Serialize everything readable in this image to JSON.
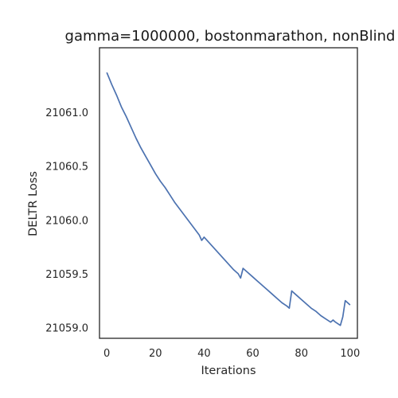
{
  "chart_data": {
    "type": "line",
    "title": "gamma=1000000, bostonmarathon, nonBlind",
    "xlabel": "Iterations",
    "ylabel": "DELTR Loss",
    "xlim": [
      -3,
      103
    ],
    "ylim": [
      21058.9,
      21061.6
    ],
    "xticks": [
      0,
      20,
      40,
      60,
      80,
      100
    ],
    "xtick_labels": [
      "0",
      "20",
      "40",
      "60",
      "80",
      "100"
    ],
    "yticks": [
      21059.0,
      21059.5,
      21060.0,
      21060.5,
      21061.0
    ],
    "ytick_labels": [
      "21059.0",
      "21059.5",
      "21060.0",
      "21060.5",
      "21061.0"
    ],
    "grid": false,
    "line_color": "#4c72b0",
    "series": [
      {
        "x": [
          0,
          2,
          4,
          6,
          8,
          10,
          12,
          14,
          16,
          18,
          20,
          22,
          24,
          26,
          28,
          30,
          32,
          34,
          36,
          38,
          39,
          40,
          42,
          44,
          46,
          48,
          50,
          52,
          54,
          55,
          56,
          58,
          60,
          62,
          64,
          66,
          68,
          70,
          72,
          74,
          75,
          76,
          78,
          80,
          82,
          84,
          86,
          88,
          90,
          92,
          93,
          94,
          96,
          97,
          98,
          100
        ],
        "y": [
          21061.37,
          21061.26,
          21061.16,
          21061.05,
          21060.96,
          21060.86,
          21060.76,
          21060.67,
          21060.59,
          21060.51,
          21060.43,
          21060.36,
          21060.3,
          21060.23,
          21060.16,
          21060.1,
          21060.04,
          21059.98,
          21059.92,
          21059.86,
          21059.81,
          21059.84,
          21059.79,
          21059.74,
          21059.69,
          21059.64,
          21059.59,
          21059.54,
          21059.5,
          21059.46,
          21059.55,
          21059.51,
          21059.47,
          21059.43,
          21059.39,
          21059.35,
          21059.31,
          21059.27,
          21059.23,
          21059.2,
          21059.18,
          21059.34,
          21059.3,
          21059.26,
          21059.22,
          21059.18,
          21059.15,
          21059.11,
          21059.08,
          21059.05,
          21059.07,
          21059.05,
          21059.02,
          21059.1,
          21059.25,
          21059.21
        ]
      }
    ]
  }
}
